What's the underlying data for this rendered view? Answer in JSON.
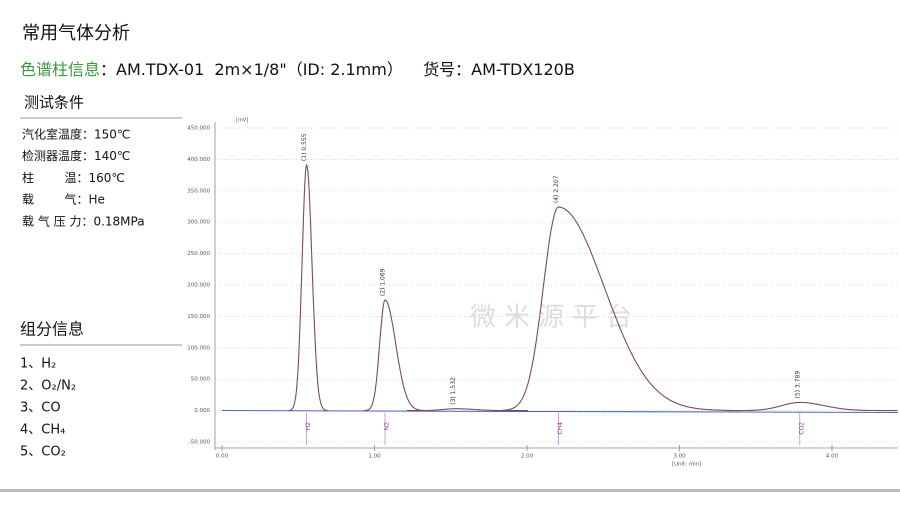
{
  "header": {
    "title": "常用气体分析",
    "column_label": "色谱柱信息",
    "column_info": "：AM.TDX-01  2m×1/8\"（ID: 2.1mm）    货号：AM-TDX120B"
  },
  "conditions": {
    "title": "测试条件",
    "items": [
      "汽化室温度：150℃",
      "检测器温度：140℃",
      "柱        温：160℃",
      "载        气：He",
      "载 气 压 力：0.18MPa"
    ]
  },
  "components": {
    "title": "组分信息",
    "items": [
      "1、H₂",
      "2、O₂/N₂",
      "3、CO",
      "4、CH₄",
      "5、CO₂"
    ]
  },
  "chromatogram": {
    "y_unit": "[mV]",
    "x_unit": "[Unit: min]",
    "watermark": "微米源平台",
    "xlim": [
      0,
      4.4
    ],
    "ylim": [
      -50,
      450
    ],
    "yticks": [
      {
        "value": 450,
        "label": "450.000"
      },
      {
        "value": 400,
        "label": "400.000"
      },
      {
        "value": 350,
        "label": "350.000"
      },
      {
        "value": 300,
        "label": "300.000"
      },
      {
        "value": 250,
        "label": "250.000"
      },
      {
        "value": 200,
        "label": "200.000"
      },
      {
        "value": 150,
        "label": "150.000"
      },
      {
        "value": 100,
        "label": "100.000"
      },
      {
        "value": 50,
        "label": "50.000"
      },
      {
        "value": 0,
        "label": "0.000"
      },
      {
        "value": -50,
        "label": "-50.000"
      }
    ],
    "xticks": [
      {
        "value": 0,
        "label": "0.00"
      },
      {
        "value": 1,
        "label": "1.00"
      },
      {
        "value": 2,
        "label": "2.00"
      },
      {
        "value": 3,
        "label": "3.00"
      },
      {
        "value": 4,
        "label": "4.00"
      }
    ],
    "peaks": [
      {
        "label": "(1) 0.555",
        "time": 0.555,
        "height": 391
      },
      {
        "label": "(2) 1.069",
        "time": 1.069,
        "height": 176
      },
      {
        "label": "(3) 1.532",
        "time": 1.532,
        "height": 3
      },
      {
        "label": "(4) 2.207",
        "time": 2.207,
        "height": 324
      },
      {
        "label": "(5) 3.789",
        "time": 3.789,
        "height": 13
      }
    ],
    "names": [
      {
        "label": "H2",
        "time": 0.555
      },
      {
        "label": "N2",
        "time": 1.069
      },
      {
        "label": "CH4",
        "time": 2.207
      },
      {
        "label": "CO2",
        "time": 3.789
      }
    ]
  }
}
